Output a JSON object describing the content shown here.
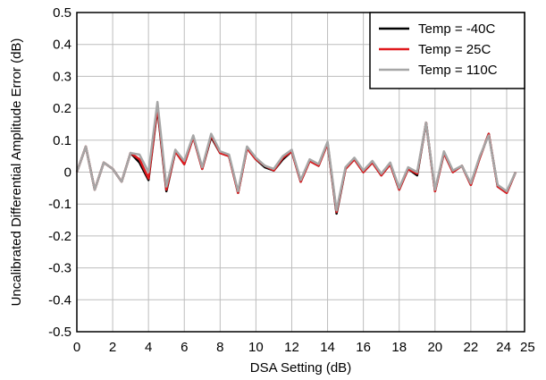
{
  "chart_data": {
    "type": "line",
    "title": "",
    "xlabel": "DSA Setting (dB)",
    "ylabel": "Uncalibrated Differential Amplitude Error (dB)",
    "xlim": [
      0,
      25
    ],
    "ylim": [
      -0.5,
      0.5
    ],
    "x_ticks": [
      0,
      2,
      4,
      6,
      8,
      10,
      12,
      14,
      16,
      18,
      20,
      22,
      24,
      25
    ],
    "x_tick_labels": [
      "0",
      "2",
      "4",
      "6",
      "8",
      "10",
      "12",
      "14",
      "16",
      "18",
      "20",
      "22",
      "24",
      "25"
    ],
    "y_ticks": [
      -0.5,
      -0.4,
      -0.3,
      -0.2,
      -0.1,
      0,
      0.1,
      0.2,
      0.3,
      0.4,
      0.5
    ],
    "y_tick_labels": [
      "-0.5",
      "-0.4",
      "-0.3",
      "-0.2",
      "-0.1",
      "0",
      "0.1",
      "0.2",
      "0.3",
      "0.4",
      "0.5"
    ],
    "grid": true,
    "legend_position": "top-right",
    "series": [
      {
        "name": "Temp = -40C",
        "color": "#000000",
        "x": [
          0,
          0.5,
          1,
          1.5,
          2,
          2.5,
          3,
          3.5,
          4,
          4.5,
          5,
          5.5,
          6,
          6.5,
          7,
          7.5,
          8,
          8.5,
          9,
          9.5,
          10,
          10.5,
          11,
          11.5,
          12,
          12.5,
          13,
          13.5,
          14,
          14.5,
          15,
          15.5,
          16,
          16.5,
          17,
          17.5,
          18,
          18.5,
          19,
          19.5,
          20,
          20.5,
          21,
          21.5,
          22,
          22.5,
          23,
          23.5,
          24,
          24.5
        ],
        "y": [
          0.0,
          0.08,
          -0.055,
          0.03,
          0.01,
          -0.03,
          0.06,
          0.03,
          -0.025,
          0.2,
          -0.06,
          0.065,
          0.025,
          0.11,
          0.01,
          0.11,
          0.06,
          0.05,
          -0.065,
          0.075,
          0.04,
          0.015,
          0.005,
          0.04,
          0.065,
          -0.03,
          0.035,
          0.02,
          0.09,
          -0.13,
          0.01,
          0.04,
          0.0,
          0.03,
          -0.01,
          0.025,
          -0.055,
          0.01,
          -0.01,
          0.155,
          -0.06,
          0.06,
          0.0,
          0.02,
          -0.04,
          0.045,
          0.12,
          -0.045,
          -0.065,
          0.0
        ]
      },
      {
        "name": "Temp = 25C",
        "color": "#e0191d",
        "x": [
          0,
          0.5,
          1,
          1.5,
          2,
          2.5,
          3,
          3.5,
          4,
          4.5,
          5,
          5.5,
          6,
          6.5,
          7,
          7.5,
          8,
          8.5,
          9,
          9.5,
          10,
          10.5,
          11,
          11.5,
          12,
          12.5,
          13,
          13.5,
          14,
          14.5,
          15,
          15.5,
          16,
          16.5,
          17,
          17.5,
          18,
          18.5,
          19,
          19.5,
          20,
          20.5,
          21,
          21.5,
          22,
          22.5,
          23,
          23.5,
          24,
          24.5
        ],
        "y": [
          0.0,
          0.08,
          -0.055,
          0.03,
          0.01,
          -0.03,
          0.06,
          0.04,
          -0.02,
          0.205,
          -0.055,
          0.065,
          0.025,
          0.11,
          0.01,
          0.115,
          0.06,
          0.05,
          -0.065,
          0.075,
          0.04,
          0.02,
          0.005,
          0.045,
          0.065,
          -0.03,
          0.035,
          0.02,
          0.09,
          -0.125,
          0.01,
          0.04,
          0.0,
          0.03,
          -0.01,
          0.025,
          -0.055,
          0.01,
          -0.005,
          0.155,
          -0.06,
          0.06,
          0.0,
          0.02,
          -0.04,
          0.045,
          0.12,
          -0.045,
          -0.065,
          0.0
        ]
      },
      {
        "name": "Temp = 110C",
        "color": "#a6a6a6",
        "x": [
          0,
          0.5,
          1,
          1.5,
          2,
          2.5,
          3,
          3.5,
          4,
          4.5,
          5,
          5.5,
          6,
          6.5,
          7,
          7.5,
          8,
          8.5,
          9,
          9.5,
          10,
          10.5,
          11,
          11.5,
          12,
          12.5,
          13,
          13.5,
          14,
          14.5,
          15,
          15.5,
          16,
          16.5,
          17,
          17.5,
          18,
          18.5,
          19,
          19.5,
          20,
          20.5,
          21,
          21.5,
          22,
          22.5,
          23,
          23.5,
          24,
          24.5
        ],
        "y": [
          0.0,
          0.08,
          -0.055,
          0.03,
          0.01,
          -0.03,
          0.06,
          0.055,
          0.0,
          0.22,
          -0.045,
          0.07,
          0.035,
          0.115,
          0.015,
          0.12,
          0.065,
          0.055,
          -0.06,
          0.08,
          0.045,
          0.02,
          0.01,
          0.05,
          0.07,
          -0.025,
          0.04,
          0.025,
          0.095,
          -0.12,
          0.015,
          0.045,
          0.005,
          0.035,
          -0.005,
          0.03,
          -0.05,
          0.015,
          0.0,
          0.155,
          -0.055,
          0.065,
          0.005,
          0.02,
          -0.035,
          0.05,
          0.115,
          -0.04,
          -0.06,
          0.0
        ]
      }
    ]
  }
}
